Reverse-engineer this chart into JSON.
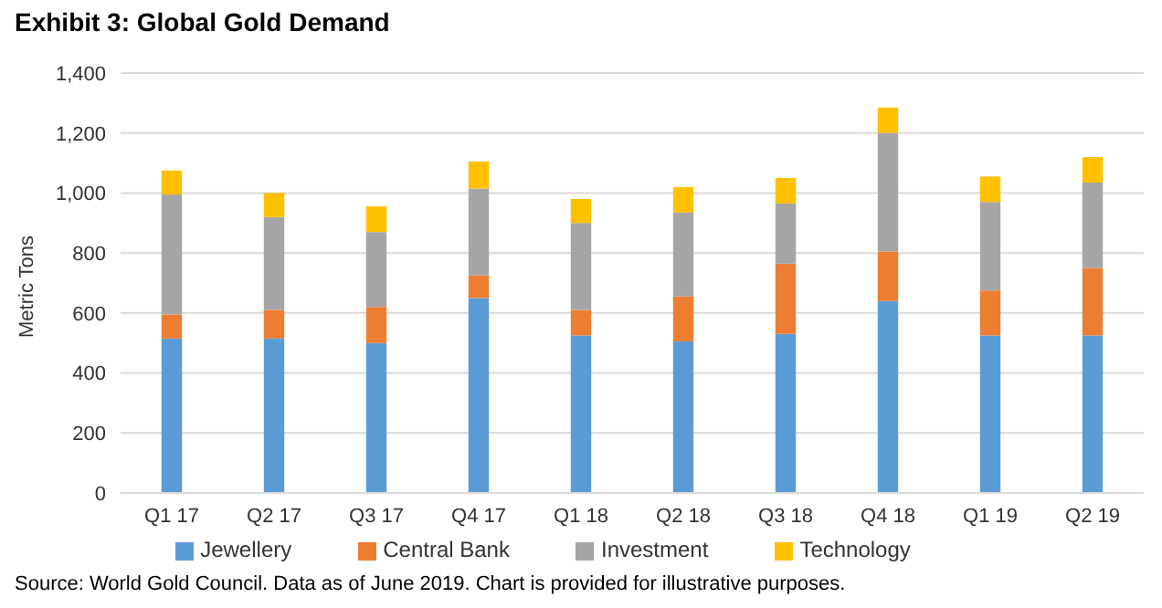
{
  "chart_data": {
    "type": "bar",
    "title": "Exhibit 3: Global Gold Demand",
    "ylabel": "Metric Tons",
    "stacked": true,
    "categories": [
      "Q1 17",
      "Q2 17",
      "Q3 17",
      "Q4 17",
      "Q1 18",
      "Q2 18",
      "Q3 18",
      "Q4 18",
      "Q1 19",
      "Q2 19"
    ],
    "series": [
      {
        "name": "Jewellery",
        "color": "#5b9bd5",
        "values": [
          515,
          515,
          500,
          650,
          525,
          505,
          530,
          640,
          525,
          525
        ]
      },
      {
        "name": "Central Bank",
        "color": "#ed7d31",
        "values": [
          80,
          95,
          120,
          75,
          85,
          150,
          235,
          165,
          150,
          225
        ]
      },
      {
        "name": "Investment",
        "color": "#a5a5a5",
        "values": [
          400,
          310,
          250,
          290,
          290,
          280,
          200,
          395,
          295,
          285
        ]
      },
      {
        "name": "Technology",
        "color": "#ffc000",
        "values": [
          80,
          80,
          85,
          90,
          80,
          85,
          85,
          85,
          85,
          85
        ]
      }
    ],
    "ylim": [
      0,
      1400
    ],
    "yticks": [
      0,
      200,
      400,
      600,
      800,
      {
        "value": 1000,
        "label": "1,000"
      },
      {
        "value": 1200,
        "label": "1,200"
      },
      {
        "value": 1400,
        "label": "1,400"
      }
    ],
    "grid": "y",
    "legend": "bottom",
    "annotations": [
      "Source: World Gold Council. Data as of June 2019. Chart is provided for illustrative purposes."
    ]
  }
}
